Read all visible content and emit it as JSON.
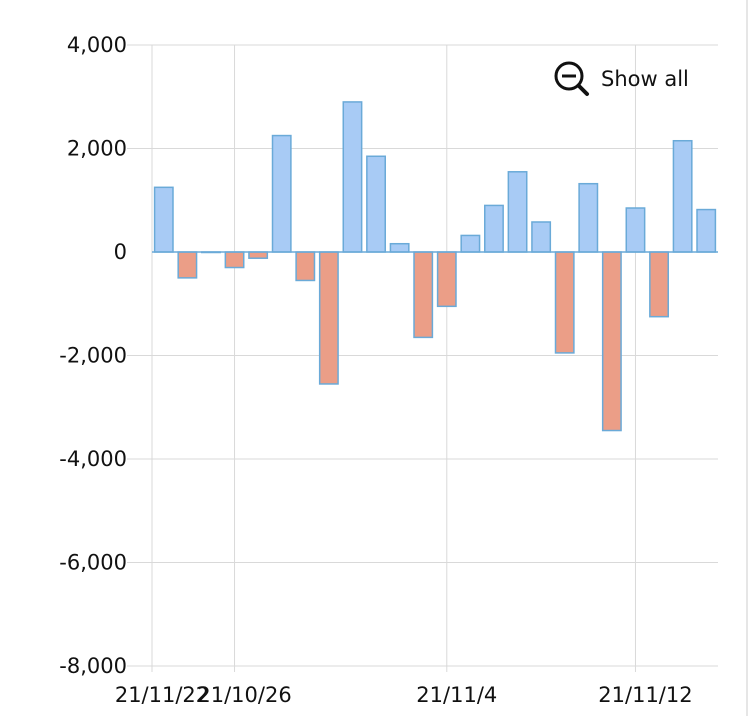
{
  "chart_data": {
    "type": "bar",
    "x": [
      "21/10/23",
      "21/10/24",
      "21/10/25",
      "21/10/26",
      "21/10/27",
      "21/10/28",
      "21/10/29",
      "21/10/30",
      "21/10/31",
      "21/11/1",
      "21/11/2",
      "21/11/3",
      "21/11/4",
      "21/11/5",
      "21/11/6",
      "21/11/7",
      "21/11/8",
      "21/11/9",
      "21/11/10",
      "21/11/11",
      "21/11/12",
      "21/11/13",
      "21/11/14",
      "21/11/15"
    ],
    "values": [
      1250,
      -500,
      0,
      -300,
      -120,
      2250,
      -550,
      -2550,
      2900,
      1850,
      160,
      -1650,
      -1050,
      320,
      900,
      1550,
      580,
      -1950,
      1320,
      -3450,
      850,
      -1250,
      2150,
      820
    ],
    "x_tick_labels": [
      "21/10/26",
      "21/11/4",
      "21/11/12",
      "21/11/22"
    ],
    "y_ticks": [
      4000,
      2000,
      0,
      -2000,
      -4000,
      -6000,
      -8000
    ],
    "y_tick_labels": [
      "4,000",
      "2,000",
      "0",
      "-2,000",
      "-4,000",
      "-6,000",
      "-8,000"
    ],
    "ylim": [
      -8000,
      4000
    ],
    "grid": true,
    "title": "",
    "xlabel": "",
    "ylabel": "",
    "colors": {
      "positive_fill": "#a8cbf5",
      "positive_stroke": "#6aaad8",
      "negative_fill": "#eb9e87",
      "negative_stroke": "#6aaad8",
      "grid": "#d9d9d9",
      "zero_line": "#6aaad8"
    }
  },
  "controls": {
    "show_all_label": "Show all",
    "show_all_icon": "zoom-out-icon"
  }
}
